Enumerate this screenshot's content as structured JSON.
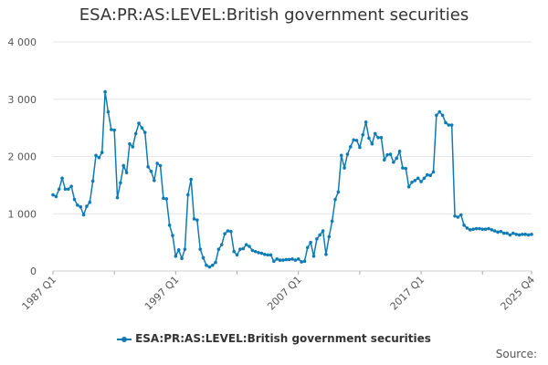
{
  "chart_data": {
    "type": "line",
    "title": "ESA:PR:AS:LEVEL:British government securities",
    "xlabel": "",
    "ylabel": "",
    "x_range": [
      "1987 Q1",
      "2025 Q4"
    ],
    "ylim": [
      0,
      4000
    ],
    "y_ticks": [
      0,
      1000,
      2000,
      3000,
      4000
    ],
    "y_tick_labels": [
      "0",
      "1 000",
      "2 000",
      "3 000",
      "4 000"
    ],
    "x_tick_labels": [
      "1987 Q1",
      "1997 Q1",
      "2007 Q1",
      "2017 Q1",
      "2025 Q4"
    ],
    "grid": true,
    "legend_position": "bottom",
    "source_label": "Source:",
    "series": [
      {
        "name": "ESA:PR:AS:LEVEL:British government securities",
        "color": "#0e7bb5",
        "values": [
          1330,
          1300,
          1430,
          1620,
          1430,
          1430,
          1480,
          1250,
          1150,
          1120,
          980,
          1130,
          1200,
          1570,
          2020,
          1980,
          2070,
          3130,
          2780,
          2470,
          2460,
          1280,
          1540,
          1840,
          1720,
          2220,
          2170,
          2400,
          2580,
          2500,
          2420,
          1820,
          1740,
          1580,
          1880,
          1840,
          1270,
          1260,
          800,
          620,
          260,
          370,
          220,
          380,
          1330,
          1600,
          910,
          890,
          380,
          230,
          100,
          70,
          100,
          150,
          380,
          460,
          650,
          700,
          690,
          340,
          280,
          380,
          390,
          460,
          430,
          360,
          340,
          320,
          310,
          290,
          280,
          280,
          170,
          210,
          190,
          190,
          200,
          200,
          210,
          190,
          210,
          160,
          170,
          410,
          500,
          260,
          560,
          630,
          700,
          290,
          600,
          870,
          1250,
          1380,
          2020,
          1800,
          2040,
          2170,
          2290,
          2280,
          2160,
          2380,
          2600,
          2320,
          2220,
          2400,
          2330,
          2330,
          1940,
          2030,
          2040,
          1900,
          1970,
          2090,
          1800,
          1790,
          1470,
          1550,
          1580,
          1620,
          1560,
          1620,
          1680,
          1670,
          1730,
          2720,
          2780,
          2720,
          2590,
          2550,
          2550,
          960,
          940,
          980,
          800,
          750,
          720,
          730,
          740,
          740,
          730,
          730,
          740,
          720,
          700,
          680,
          690,
          660,
          660,
          630,
          660,
          640,
          630,
          640,
          640,
          630,
          640
        ]
      }
    ]
  }
}
